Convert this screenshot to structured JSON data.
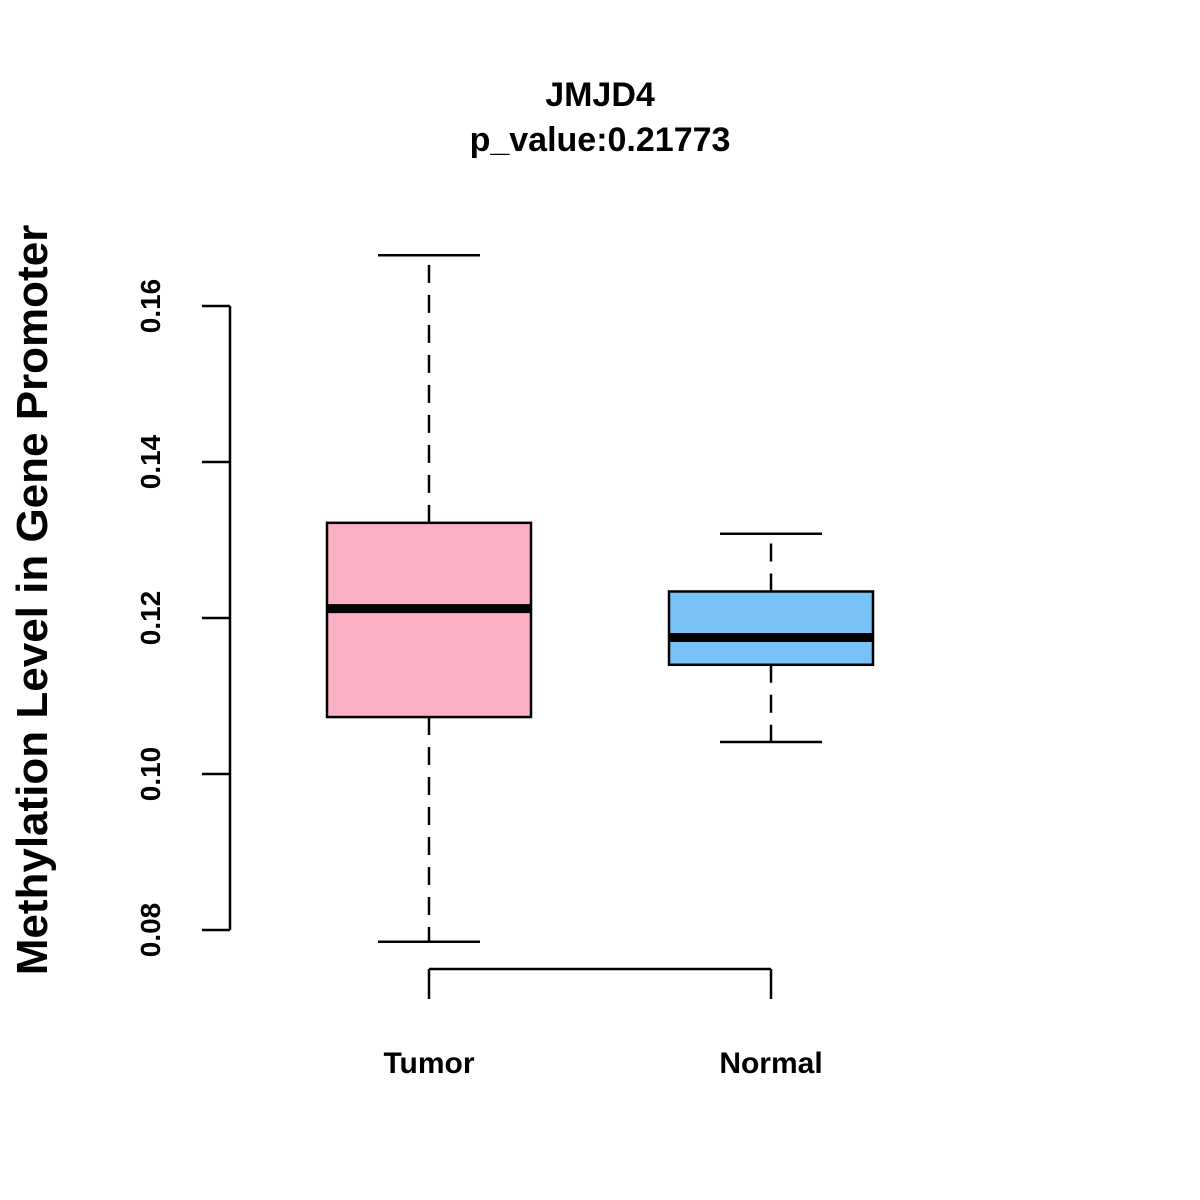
{
  "chart_data": {
    "type": "box",
    "title": "JMJD4",
    "subtitle": "p_value:0.21773",
    "ylabel": "Methylation Level in Gene Promoter",
    "xlabel": "",
    "ylim": [
      0.08,
      0.16
    ],
    "yticks": [
      0.08,
      0.1,
      0.12,
      0.14,
      0.16
    ],
    "ytick_labels": [
      "0.08",
      "0.10",
      "0.12",
      "0.14",
      "0.16"
    ],
    "categories": [
      "Tumor",
      "Normal"
    ],
    "boxes": [
      {
        "name": "Tumor",
        "min": 0.0785,
        "q1": 0.1073,
        "median": 0.1212,
        "q3": 0.1322,
        "max": 0.1665,
        "color": "#FBB1C3"
      },
      {
        "name": "Normal",
        "min": 0.1041,
        "q1": 0.114,
        "median": 0.1175,
        "q3": 0.1234,
        "max": 0.1308,
        "color": "#79C2F8"
      }
    ],
    "grid": false,
    "legend": "none"
  }
}
